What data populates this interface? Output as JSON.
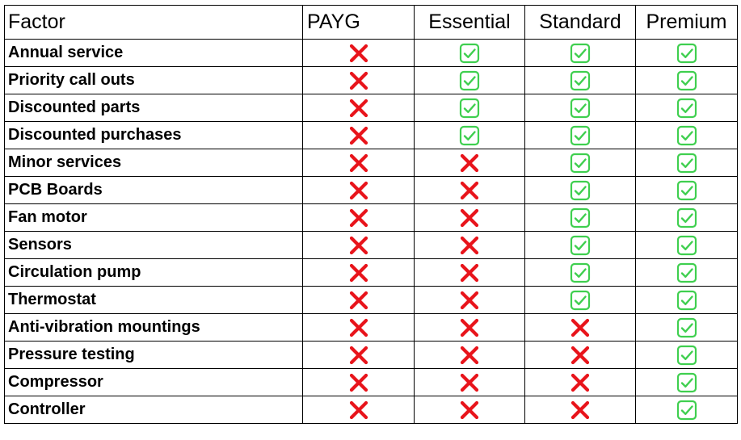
{
  "table": {
    "headers": [
      "Factor",
      "PAYG",
      "Essential",
      "Standard",
      "Premium"
    ],
    "rows": [
      {
        "factor": "Annual service",
        "marks": [
          "no",
          "yes",
          "yes",
          "yes"
        ]
      },
      {
        "factor": "Priority call outs",
        "marks": [
          "no",
          "yes",
          "yes",
          "yes"
        ]
      },
      {
        "factor": "Discounted parts",
        "marks": [
          "no",
          "yes",
          "yes",
          "yes"
        ]
      },
      {
        "factor": "Discounted purchases",
        "marks": [
          "no",
          "yes",
          "yes",
          "yes"
        ]
      },
      {
        "factor": "Minor services",
        "marks": [
          "no",
          "no",
          "yes",
          "yes"
        ]
      },
      {
        "factor": "PCB Boards",
        "marks": [
          "no",
          "no",
          "yes",
          "yes"
        ]
      },
      {
        "factor": "Fan motor",
        "marks": [
          "no",
          "no",
          "yes",
          "yes"
        ]
      },
      {
        "factor": "Sensors",
        "marks": [
          "no",
          "no",
          "yes",
          "yes"
        ]
      },
      {
        "factor": "Circulation pump",
        "marks": [
          "no",
          "no",
          "yes",
          "yes"
        ]
      },
      {
        "factor": "Thermostat",
        "marks": [
          "no",
          "no",
          "yes",
          "yes"
        ]
      },
      {
        "factor": "Anti-vibration mountings",
        "marks": [
          "no",
          "no",
          "no",
          "yes"
        ]
      },
      {
        "factor": "Pressure testing",
        "marks": [
          "no",
          "no",
          "no",
          "yes"
        ]
      },
      {
        "factor": "Compressor",
        "marks": [
          "no",
          "no",
          "no",
          "yes"
        ]
      },
      {
        "factor": "Controller",
        "marks": [
          "no",
          "no",
          "no",
          "yes"
        ]
      }
    ]
  },
  "icons": {
    "yes": "green-check-box-icon",
    "no": "red-cross-icon"
  },
  "colors": {
    "check": "#3fcf4f",
    "cross": "#e8141b",
    "border": "#000000"
  }
}
